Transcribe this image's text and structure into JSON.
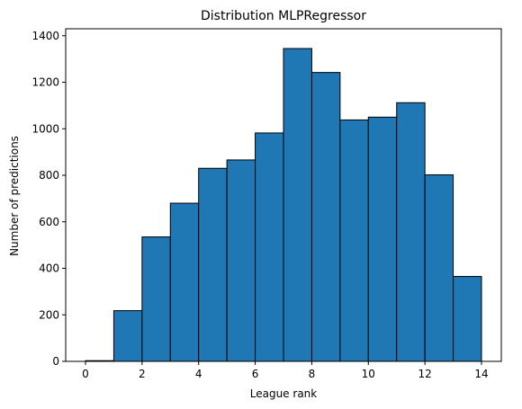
{
  "chart_data": {
    "type": "bar",
    "title": "Distribution MLPRegressor",
    "xlabel": "League rank",
    "ylabel": "Number of predictions",
    "bins": [
      {
        "start": 0,
        "end": 1,
        "value": 3
      },
      {
        "start": 1,
        "end": 2,
        "value": 218
      },
      {
        "start": 2,
        "end": 3,
        "value": 535
      },
      {
        "start": 3,
        "end": 4,
        "value": 680
      },
      {
        "start": 4,
        "end": 5,
        "value": 830
      },
      {
        "start": 5,
        "end": 6,
        "value": 866
      },
      {
        "start": 6,
        "end": 7,
        "value": 982
      },
      {
        "start": 7,
        "end": 8,
        "value": 1345
      },
      {
        "start": 8,
        "end": 9,
        "value": 1242
      },
      {
        "start": 9,
        "end": 10,
        "value": 1038
      },
      {
        "start": 10,
        "end": 11,
        "value": 1050
      },
      {
        "start": 11,
        "end": 12,
        "value": 1112
      },
      {
        "start": 12,
        "end": 13,
        "value": 802
      },
      {
        "start": 13,
        "end": 14,
        "value": 365
      }
    ],
    "xlim": [
      -0.7,
      14.7
    ],
    "ylim": [
      0,
      1430
    ],
    "xticks": [
      "0",
      "2",
      "4",
      "6",
      "8",
      "10",
      "12",
      "14"
    ],
    "yticks": [
      "0",
      "200",
      "400",
      "600",
      "800",
      "1000",
      "1200",
      "1400"
    ],
    "grid": false,
    "colors": {
      "bar_fill": "#1f77b4",
      "bar_edge": "#000000"
    }
  }
}
